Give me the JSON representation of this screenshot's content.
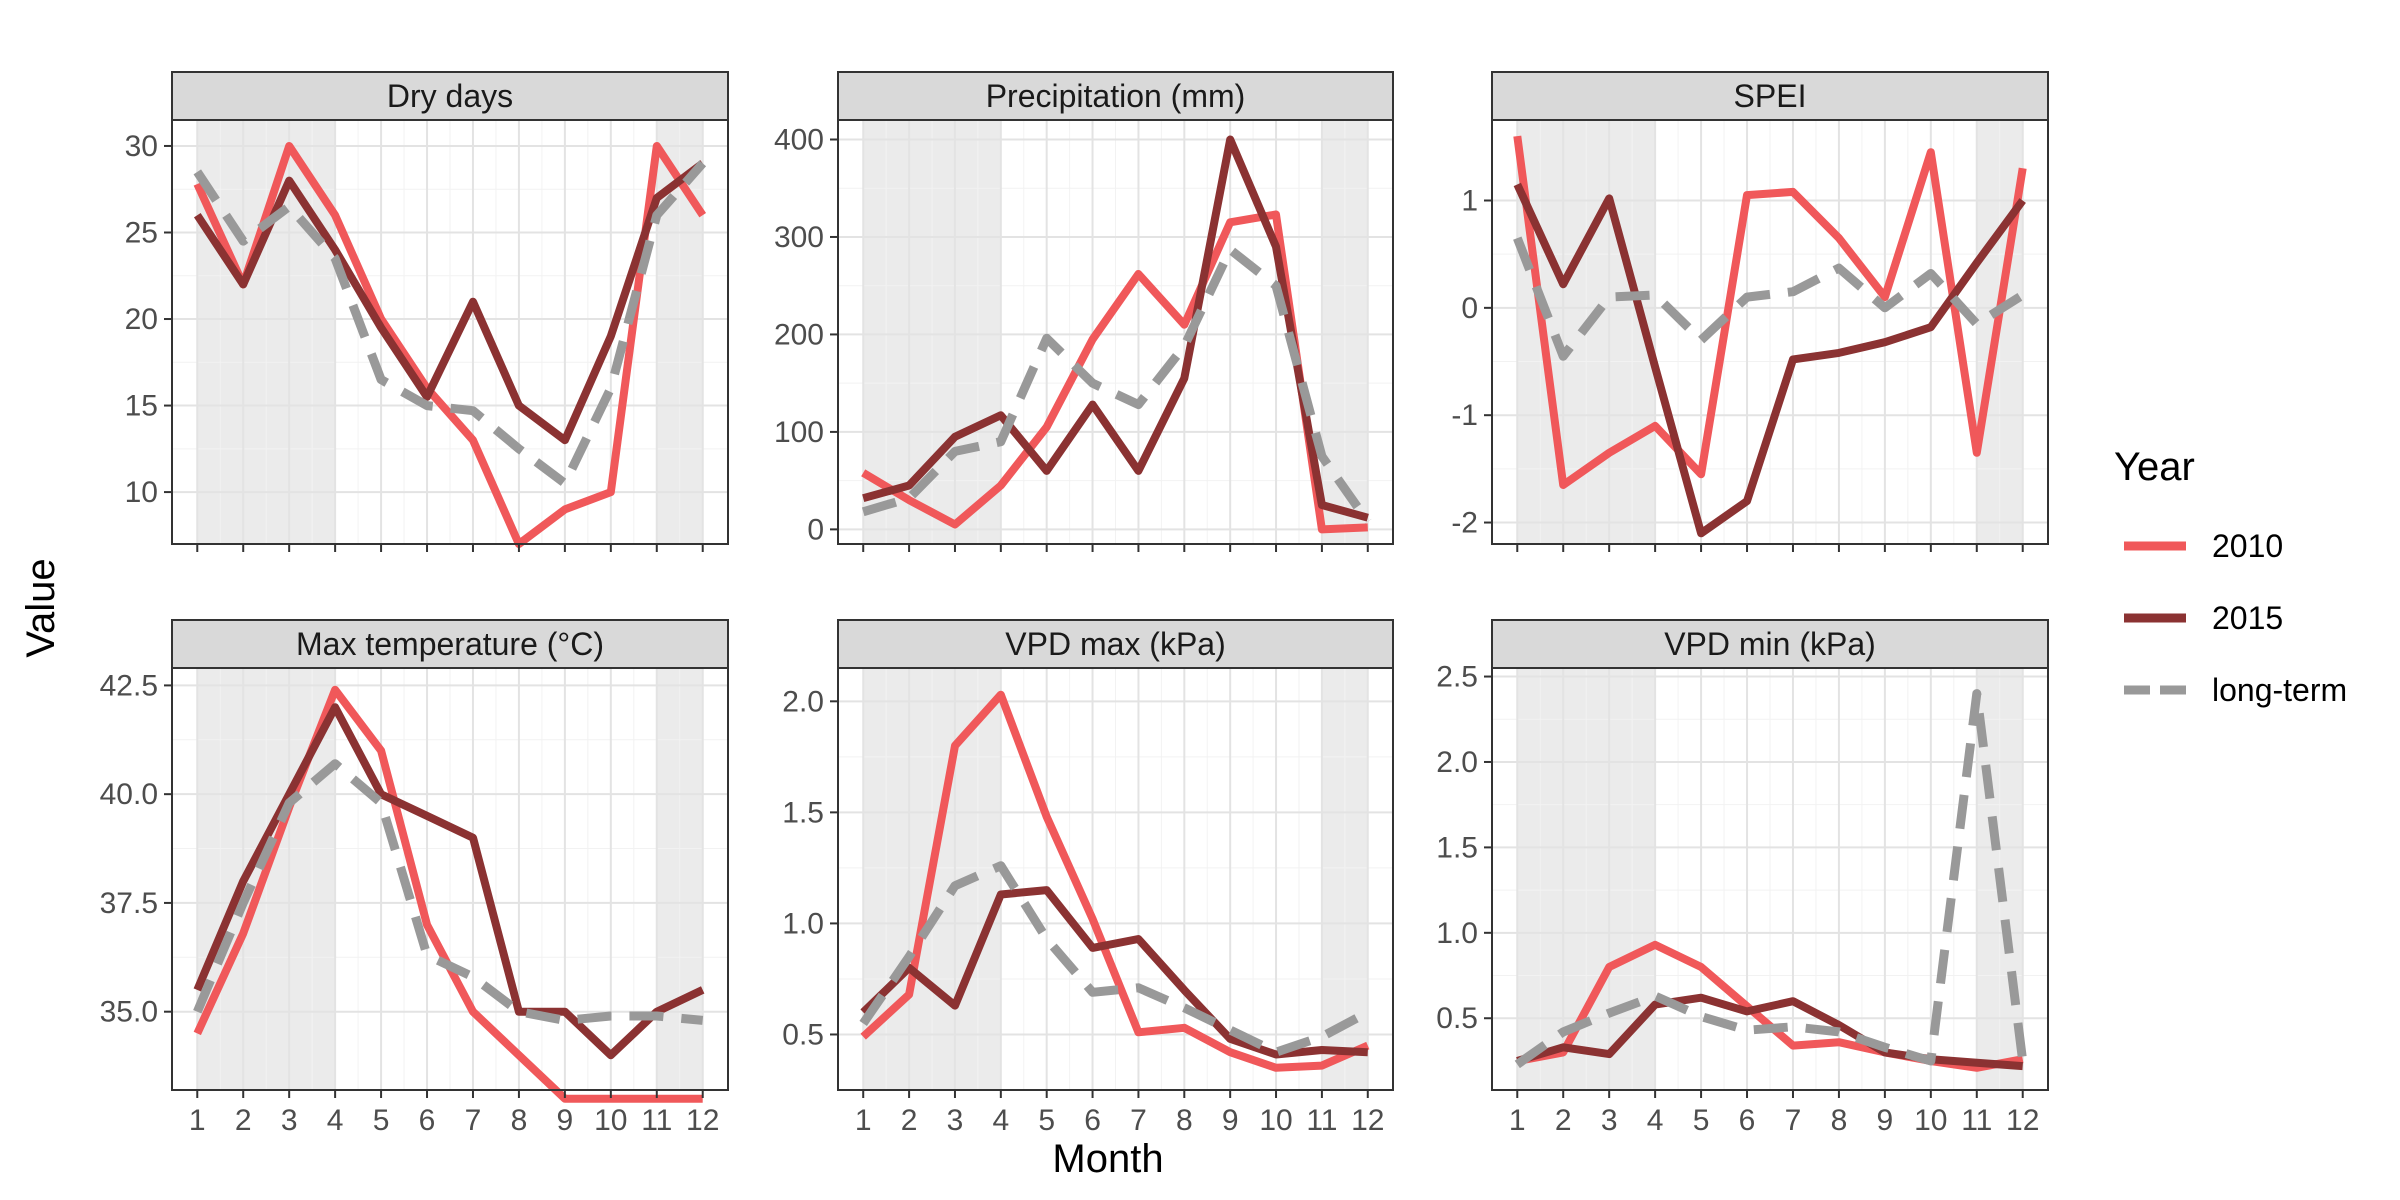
{
  "chart_data": {
    "type": "line",
    "xlabel": "Month",
    "ylabel": "Value",
    "x": [
      1,
      2,
      3,
      4,
      5,
      6,
      7,
      8,
      9,
      10,
      11,
      12
    ],
    "x_tick_labels": [
      "1",
      "2",
      "3",
      "4",
      "5",
      "6",
      "7",
      "8",
      "9",
      "10",
      "11",
      "12"
    ],
    "shaded_months": [
      [
        1,
        4
      ],
      [
        11,
        12
      ]
    ],
    "grid": true,
    "legend": {
      "title": "Year",
      "position": "right",
      "entries": [
        {
          "label": "2010",
          "color": "#f0585a",
          "dash": "solid"
        },
        {
          "label": "2015",
          "color": "#8b3232",
          "dash": "solid"
        },
        {
          "label": "long-term",
          "color": "#999999",
          "dash": "dashed"
        }
      ]
    },
    "panels": [
      {
        "title": "Dry days",
        "ylim": [
          7,
          31.5
        ],
        "yticks": [
          10,
          15,
          20,
          25,
          30
        ],
        "ytick_labels": [
          "10",
          "15",
          "20",
          "25",
          "30"
        ],
        "series": [
          {
            "name": "2010",
            "values": [
              27.8,
              22,
              30,
              26,
              20,
              16,
              13,
              7,
              9,
              10,
              30,
              26
            ]
          },
          {
            "name": "2015",
            "values": [
              26,
              22,
              28,
              24,
              19.5,
              15.5,
              21,
              15,
              13,
              19,
              27,
              29
            ]
          },
          {
            "name": "long-term",
            "values": [
              28.5,
              24.5,
              26.5,
              23.5,
              16.5,
              15,
              14.7,
              12.5,
              10.5,
              16,
              26,
              29
            ]
          }
        ]
      },
      {
        "title": "Precipitation (mm)",
        "ylim": [
          -15,
          420
        ],
        "yticks": [
          0,
          100,
          200,
          300,
          400
        ],
        "ytick_labels": [
          "0",
          "100",
          "200",
          "300",
          "400"
        ],
        "series": [
          {
            "name": "2010",
            "values": [
              58,
              30,
              5,
              45,
              105,
              195,
              262,
              210,
              315,
              323,
              0,
              2
            ]
          },
          {
            "name": "2015",
            "values": [
              32,
              45,
              95,
              117,
              60,
              128,
              60,
              155,
              400,
              290,
              25,
              12
            ]
          },
          {
            "name": "long-term",
            "values": [
              18,
              32,
              80,
              90,
              196,
              150,
              128,
              188,
              287,
              250,
              75,
              8
            ]
          }
        ]
      },
      {
        "title": "SPEI",
        "ylim": [
          -2.2,
          1.75
        ],
        "yticks": [
          -2,
          -1,
          0,
          1
        ],
        "ytick_labels": [
          "-2",
          "-1",
          "0",
          "1"
        ],
        "series": [
          {
            "name": "2010",
            "values": [
              1.6,
              -1.65,
              -1.35,
              -1.1,
              -1.55,
              1.05,
              1.08,
              0.65,
              0.1,
              1.45,
              -1.35,
              1.3
            ]
          },
          {
            "name": "2015",
            "values": [
              1.15,
              0.22,
              1.02,
              -0.55,
              -2.1,
              -1.8,
              -0.48,
              -0.42,
              -0.32,
              -0.18,
              0.42,
              1.0
            ]
          },
          {
            "name": "long-term",
            "values": [
              0.65,
              -0.45,
              0.1,
              0.12,
              -0.3,
              0.1,
              0.15,
              0.37,
              0.0,
              0.32,
              -0.15,
              0.12
            ]
          }
        ]
      },
      {
        "title": "Max temperature (°C)",
        "ylim": [
          33.2,
          42.9
        ],
        "yticks": [
          35.0,
          37.5,
          40.0,
          42.5
        ],
        "ytick_labels": [
          "35.0",
          "37.5",
          "40.0",
          "42.5"
        ],
        "series": [
          {
            "name": "2010",
            "values": [
              34.5,
              36.8,
              39.7,
              42.4,
              41.0,
              37.0,
              35.0,
              34.0,
              33.0,
              33.0,
              33.0,
              33.0
            ]
          },
          {
            "name": "2015",
            "values": [
              35.5,
              38.0,
              40.0,
              42.0,
              40.0,
              39.5,
              39.0,
              35.0,
              35.0,
              34.0,
              35.0,
              35.5
            ]
          },
          {
            "name": "long-term",
            "values": [
              35.0,
              37.5,
              39.8,
              40.7,
              39.8,
              36.3,
              35.8,
              35.0,
              34.8,
              34.9,
              34.9,
              34.8
            ]
          }
        ]
      },
      {
        "title": "VPD max (kPa)",
        "ylim": [
          0.25,
          2.15
        ],
        "yticks": [
          0.5,
          1.0,
          1.5,
          2.0
        ],
        "ytick_labels": [
          "0.5",
          "1.0",
          "1.5",
          "2.0"
        ],
        "series": [
          {
            "name": "2010",
            "values": [
              0.49,
              0.68,
              1.8,
              2.03,
              1.48,
              1.02,
              0.51,
              0.53,
              0.42,
              0.35,
              0.36,
              0.45
            ]
          },
          {
            "name": "2015",
            "values": [
              0.6,
              0.8,
              0.63,
              1.13,
              1.15,
              0.89,
              0.93,
              0.7,
              0.48,
              0.41,
              0.43,
              0.42
            ]
          },
          {
            "name": "long-term",
            "values": [
              0.55,
              0.85,
              1.17,
              1.26,
              0.93,
              0.69,
              0.71,
              0.62,
              0.52,
              0.42,
              0.49,
              0.6
            ]
          }
        ]
      },
      {
        "title": "VPD min (kPa)",
        "ylim": [
          0.08,
          2.55
        ],
        "yticks": [
          0.5,
          1.0,
          1.5,
          2.0,
          2.5
        ],
        "ytick_labels": [
          "0.5",
          "1.0",
          "1.5",
          "2.0",
          "2.5"
        ],
        "series": [
          {
            "name": "2010",
            "values": [
              0.25,
              0.3,
              0.8,
              0.93,
              0.8,
              0.57,
              0.34,
              0.36,
              0.3,
              0.25,
              0.21,
              0.26
            ]
          },
          {
            "name": "2015",
            "values": [
              0.25,
              0.33,
              0.29,
              0.58,
              0.62,
              0.54,
              0.6,
              0.46,
              0.3,
              0.26,
              0.24,
              0.22
            ]
          },
          {
            "name": "long-term",
            "values": [
              0.23,
              0.42,
              0.53,
              0.63,
              0.51,
              0.43,
              0.45,
              0.42,
              0.33,
              0.25,
              2.4,
              0.25
            ]
          }
        ]
      }
    ]
  }
}
